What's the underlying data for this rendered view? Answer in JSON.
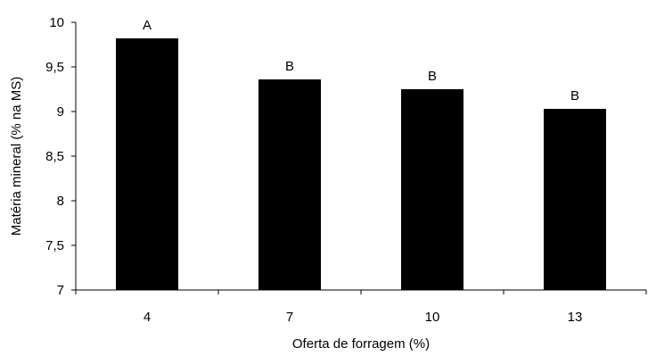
{
  "chart_data": {
    "type": "bar",
    "title": "",
    "xlabel": "Oferta de forragem (%)",
    "ylabel": "Matéria mineral (% na MS)",
    "categories": [
      "4",
      "7",
      "10",
      "13"
    ],
    "values": [
      9.82,
      9.36,
      9.25,
      9.03
    ],
    "bar_labels": [
      "A",
      "B",
      "B",
      "B"
    ],
    "ylim": [
      7,
      10
    ],
    "yticks": [
      7,
      7.5,
      8,
      8.5,
      9,
      9.5,
      10
    ],
    "ytick_labels": [
      "7",
      "7,5",
      "8",
      "8,5",
      "9",
      "9,5",
      "10"
    ],
    "grid": false,
    "legend": "none",
    "bar_color": "#000000"
  }
}
